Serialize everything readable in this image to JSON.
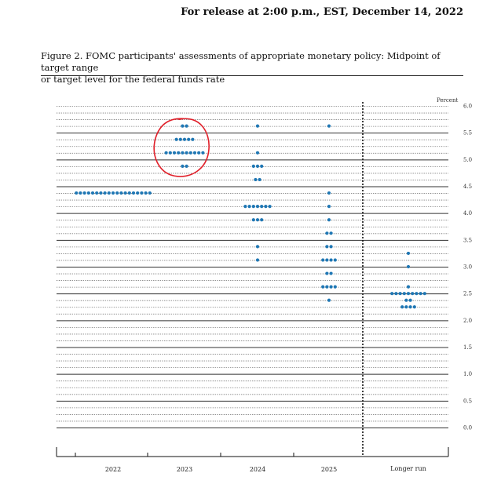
{
  "header": {
    "release": "For release at 2:00 p.m., EST, December 14, 2022"
  },
  "figure": {
    "title_line1": "Figure 2.  FOMC participants' assessments of appropriate monetary policy:  Midpoint of target range",
    "title_line2": "or target level for the federal funds rate"
  },
  "annotation": {
    "circle_color": "#e0202a",
    "circled_category": "2023"
  },
  "chart_data": {
    "type": "scatter",
    "title": "",
    "ylabel": "Percent",
    "xlabel": "",
    "ylim": [
      0,
      6
    ],
    "yticks": [
      "0.0",
      "0.5",
      "1.0",
      "1.5",
      "2.0",
      "2.5",
      "3.0",
      "3.5",
      "4.0",
      "4.5",
      "5.0",
      "5.5",
      "6.0"
    ],
    "categories": [
      "2022",
      "2023",
      "2024",
      "2025",
      "Longer run"
    ],
    "dot_color": "#1f77b4",
    "grid": "dotted horizontal lines every 0.125; solid lines at whole and half percent",
    "separator_after_category": "2025",
    "series": [
      {
        "category": "2022",
        "points": [
          {
            "y": 4.375,
            "count": 19
          }
        ]
      },
      {
        "category": "2023",
        "points": [
          {
            "y": 5.625,
            "count": 2
          },
          {
            "y": 5.375,
            "count": 5
          },
          {
            "y": 5.125,
            "count": 10
          },
          {
            "y": 4.875,
            "count": 2
          }
        ]
      },
      {
        "category": "2024",
        "points": [
          {
            "y": 5.625,
            "count": 1
          },
          {
            "y": 5.125,
            "count": 1
          },
          {
            "y": 4.875,
            "count": 3
          },
          {
            "y": 4.625,
            "count": 2
          },
          {
            "y": 4.125,
            "count": 7
          },
          {
            "y": 3.875,
            "count": 3
          },
          {
            "y": 3.375,
            "count": 1
          },
          {
            "y": 3.125,
            "count": 1
          }
        ]
      },
      {
        "category": "2025",
        "points": [
          {
            "y": 5.625,
            "count": 1
          },
          {
            "y": 4.375,
            "count": 1
          },
          {
            "y": 4.125,
            "count": 1
          },
          {
            "y": 3.875,
            "count": 1
          },
          {
            "y": 3.625,
            "count": 2
          },
          {
            "y": 3.375,
            "count": 2
          },
          {
            "y": 3.125,
            "count": 4
          },
          {
            "y": 2.875,
            "count": 2
          },
          {
            "y": 2.625,
            "count": 4
          },
          {
            "y": 2.375,
            "count": 1
          }
        ]
      },
      {
        "category": "Longer run",
        "points": [
          {
            "y": 3.25,
            "count": 1
          },
          {
            "y": 3.0,
            "count": 1
          },
          {
            "y": 2.625,
            "count": 1
          },
          {
            "y": 2.5,
            "count": 9
          },
          {
            "y": 2.375,
            "count": 2
          },
          {
            "y": 2.25,
            "count": 4
          }
        ]
      }
    ]
  }
}
